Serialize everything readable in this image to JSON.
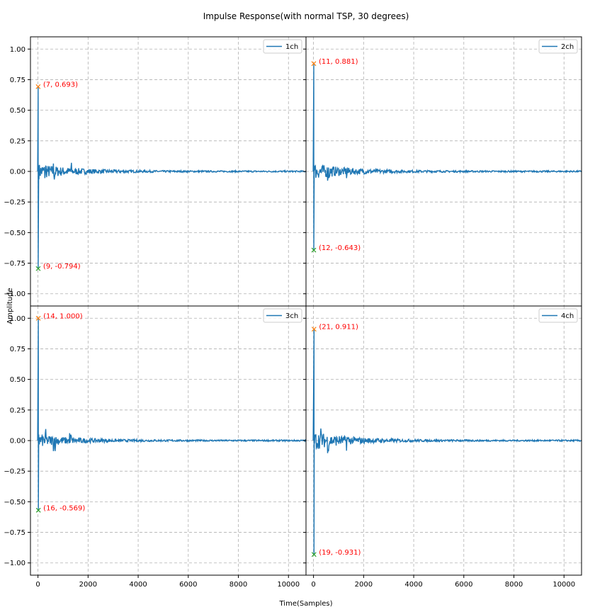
{
  "chart_data": {
    "type": "line",
    "title": "Impulse Response(with normal TSP, 30 degrees)",
    "xlabel": "Time(Samples)",
    "ylabel": "Amplitude",
    "layout": {
      "rows": 2,
      "cols": 2,
      "sharex": true,
      "sharey": true
    },
    "xlim": [
      -300,
      10700
    ],
    "ylim": [
      -1.1,
      1.1
    ],
    "xticks": [
      0,
      2000,
      4000,
      6000,
      8000,
      10000
    ],
    "xtick_labels": [
      "0",
      "2000",
      "4000",
      "6000",
      "8000",
      "10000"
    ],
    "yticks": [
      1.0,
      0.75,
      0.5,
      0.25,
      0.0,
      -0.25,
      -0.5,
      -0.75,
      -1.0
    ],
    "ytick_labels": [
      "1.00",
      "0.75",
      "0.50",
      "0.25",
      "0.00",
      "−0.25",
      "−0.50",
      "−0.75",
      "−1.00"
    ],
    "grid": true,
    "grid_style": "dashed",
    "legend_position": "upper right",
    "line_color": "#1f77b4",
    "max_marker_color": "#ff7f0e",
    "min_marker_color": "#2ca02c",
    "annotation_color": "#ff0000",
    "series": [
      {
        "name": "1ch",
        "max": {
          "x": 7,
          "y": 0.693,
          "label": "(7, 0.693)"
        },
        "min": {
          "x": 9,
          "y": -0.794,
          "label": "(9, -0.794)"
        },
        "tail_amplitude": 0.06,
        "bursts": [
          300,
          650,
          1300
        ]
      },
      {
        "name": "2ch",
        "max": {
          "x": 11,
          "y": 0.881,
          "label": "(11, 0.881)"
        },
        "min": {
          "x": 12,
          "y": -0.643,
          "label": "(12, -0.643)"
        },
        "tail_amplitude": 0.06,
        "bursts": [
          300,
          600,
          1350
        ]
      },
      {
        "name": "3ch",
        "max": {
          "x": 14,
          "y": 1.0,
          "label": "(14, 1.000)"
        },
        "min": {
          "x": 16,
          "y": -0.569,
          "label": "(16, -0.569)"
        },
        "tail_amplitude": 0.05,
        "bursts": [
          300,
          650,
          1300
        ]
      },
      {
        "name": "4ch",
        "max": {
          "x": 21,
          "y": 0.911,
          "label": "(21, 0.911)"
        },
        "min": {
          "x": 19,
          "y": -0.931,
          "label": "(19, -0.931)"
        },
        "tail_amplitude": 0.07,
        "bursts": [
          300,
          600,
          1350
        ]
      }
    ]
  }
}
